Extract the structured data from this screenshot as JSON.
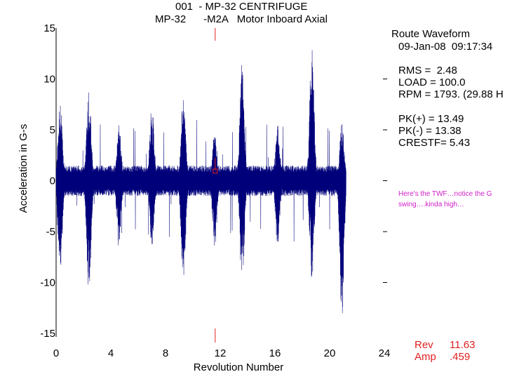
{
  "chart_data": {
    "type": "line",
    "title_line1": "001  - MP-32 CENTRIFUGE",
    "title_line2": "MP-32      -M2A   Motor Inboard Axial",
    "xlabel": "Revolution Number",
    "ylabel": "Acceleration in G-s",
    "xlim": [
      0,
      24
    ],
    "ylim": [
      -15,
      15
    ],
    "xticks": [
      "0",
      "4",
      "8",
      "12",
      "16",
      "20",
      "24"
    ],
    "yticks": [
      "15",
      "10",
      "5",
      "0",
      "-5",
      "-10",
      "-15"
    ],
    "grid": false,
    "line_color": "#00007a",
    "cursor_color": "#e02020",
    "series": [
      {
        "revolution_range": [
          0,
          21.2
        ],
        "baseline_band": [
          -1.5,
          1.5
        ],
        "peak_positive": 13.49,
        "peak_negative": -13.38,
        "bursts": [
          {
            "x": 0.3,
            "pos": 7.5,
            "neg": -9.0
          },
          {
            "x": 2.4,
            "pos": 9.0,
            "neg": -11.0
          },
          {
            "x": 4.6,
            "pos": 5.5,
            "neg": -7.0
          },
          {
            "x": 7.0,
            "pos": 7.5,
            "neg": -6.5
          },
          {
            "x": 9.3,
            "pos": 8.5,
            "neg": -10.0
          },
          {
            "x": 11.6,
            "pos": 5.0,
            "neg": -6.5
          },
          {
            "x": 13.6,
            "pos": 12.0,
            "neg": -10.5
          },
          {
            "x": 16.2,
            "pos": 5.5,
            "neg": -6.5
          },
          {
            "x": 18.7,
            "pos": 13.49,
            "neg": -10.0
          },
          {
            "x": 20.9,
            "pos": 6.0,
            "neg": -13.38
          }
        ]
      }
    ],
    "cursor": {
      "x": 11.63,
      "y": 0.459
    }
  },
  "info": {
    "header": "Route Waveform",
    "datetime": "09-Jan-08  09:17:34",
    "rms": "RMS =  2.48",
    "load": "LOAD = 100.0",
    "rpm": "RPM = 1793. (29.88 H",
    "pk_pos": "PK(+) = 13.49",
    "pk_neg": "PK(-) = 13.38",
    "crestf": "CRESTF= 5.43"
  },
  "annotation": "Here's the TWF…notice the G swing….kinda high…",
  "cursor_readout": {
    "rev_label": "Rev",
    "rev_value": "11.63",
    "amp_label": "Amp",
    "amp_value": ".459"
  }
}
